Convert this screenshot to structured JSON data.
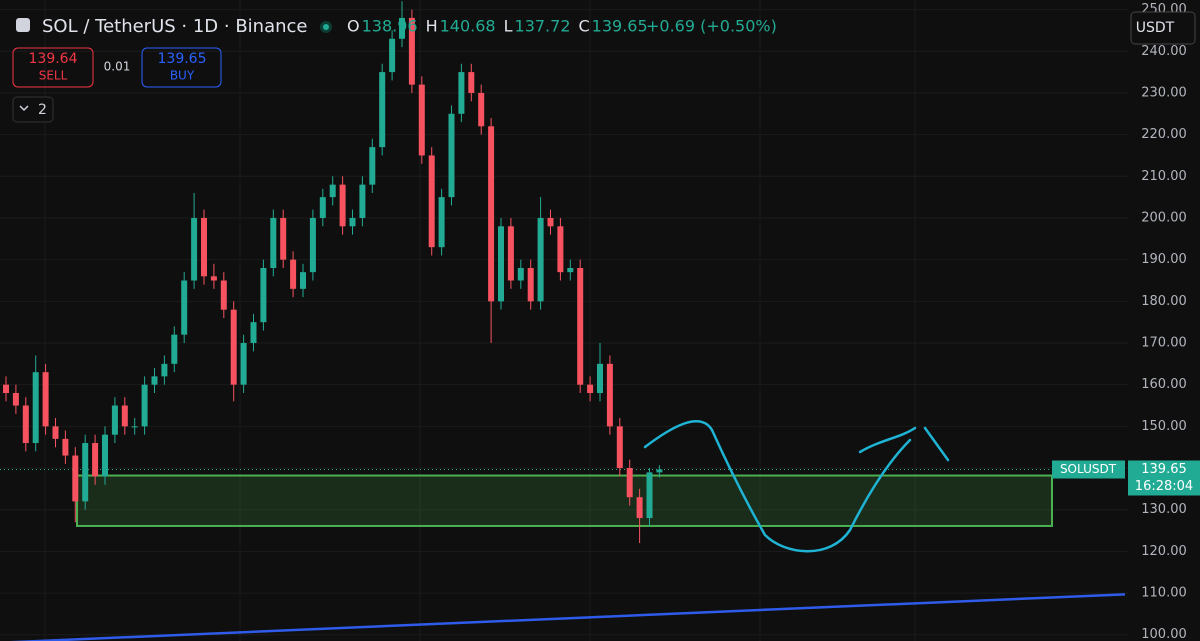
{
  "header": {
    "symbol": "SOL / TetherUS · 1D · Binance",
    "ohlc": [
      {
        "key": "O",
        "value": 138.96
      },
      {
        "key": "H",
        "value": 140.68
      },
      {
        "key": "L",
        "value": 137.72
      },
      {
        "key": "C",
        "value": 139.65
      }
    ],
    "change": "+0.69 (+0.50%)",
    "sell": {
      "price": 139.64,
      "label": "SELL"
    },
    "spread": 0.01,
    "buy": {
      "price": 139.65,
      "label": "BUY"
    },
    "indicators": "2",
    "currency": "USDT"
  },
  "chart_data": {
    "type": "candlestick",
    "up_color": "#22ab94",
    "down_color": "#f7525f",
    "open": [
      160,
      158,
      155,
      146,
      163,
      150,
      147,
      143,
      132,
      146,
      138,
      148,
      155,
      150,
      150,
      160,
      162,
      165,
      172,
      185,
      200,
      186,
      185,
      178,
      160,
      170,
      175,
      188,
      200,
      190,
      183,
      187,
      200,
      205,
      208,
      198,
      200,
      208,
      217,
      235,
      243,
      248,
      232,
      215,
      193,
      205,
      225,
      235,
      230,
      222,
      180,
      198,
      185,
      188,
      180,
      200,
      198,
      187,
      188,
      160,
      158,
      165,
      150,
      140,
      133,
      128,
      138.96
    ],
    "high": [
      162,
      160,
      157,
      167,
      165,
      152,
      149,
      145,
      148,
      148,
      150,
      157,
      157,
      152,
      162,
      164,
      167,
      174,
      187,
      206,
      202,
      189,
      187,
      180,
      172,
      177,
      190,
      202,
      202,
      192,
      189,
      202,
      207,
      210,
      210,
      202,
      210,
      219,
      237,
      245,
      252,
      250,
      234,
      217,
      207,
      227,
      237,
      237,
      232,
      224,
      200,
      200,
      190,
      190,
      205,
      202,
      200,
      190,
      190,
      162,
      170,
      167,
      152,
      142,
      135,
      140,
      140.68
    ],
    "low": [
      156,
      153,
      144,
      144,
      148,
      145,
      141,
      127,
      130,
      136,
      136,
      146,
      148,
      148,
      148,
      158,
      160,
      163,
      170,
      183,
      184,
      183,
      176,
      156,
      158,
      168,
      173,
      186,
      188,
      181,
      181,
      185,
      198,
      203,
      196,
      196,
      198,
      206,
      215,
      233,
      241,
      230,
      213,
      191,
      191,
      203,
      223,
      228,
      220,
      170,
      178,
      183,
      183,
      178,
      178,
      196,
      185,
      185,
      158,
      156,
      156,
      148,
      138,
      131,
      122,
      126,
      137.72
    ],
    "close": [
      158,
      155,
      146,
      163,
      150,
      147,
      143,
      132,
      146,
      138,
      148,
      155,
      150,
      150,
      160,
      162,
      165,
      172,
      185,
      200,
      186,
      185,
      178,
      160,
      170,
      175,
      188,
      200,
      190,
      183,
      187,
      200,
      205,
      208,
      198,
      200,
      208,
      217,
      235,
      243,
      248,
      232,
      215,
      193,
      205,
      225,
      235,
      230,
      222,
      180,
      198,
      185,
      188,
      180,
      200,
      198,
      187,
      188,
      160,
      158,
      165,
      150,
      140,
      133,
      128,
      138.96,
      139.65
    ],
    "ylim": [
      98.5,
      252.3
    ],
    "yticks": [
      {
        "value": 100,
        "label": "100.00"
      },
      {
        "value": 110,
        "label": "110.00"
      },
      {
        "value": 120,
        "label": "120.00"
      },
      {
        "value": 130,
        "label": "130.00"
      },
      {
        "value": 140,
        "label": "140.00"
      },
      {
        "value": 150,
        "label": "150.00"
      },
      {
        "value": 160,
        "label": "160.00"
      },
      {
        "value": 170,
        "label": "170.00"
      },
      {
        "value": 180,
        "label": "180.00"
      },
      {
        "value": 190,
        "label": "190.00"
      },
      {
        "value": 200,
        "label": "200.00"
      },
      {
        "value": 210,
        "label": "210.00"
      },
      {
        "value": 220,
        "label": "220.00"
      },
      {
        "value": 230,
        "label": "230.00"
      },
      {
        "value": 240,
        "label": "240.00"
      },
      {
        "value": 250,
        "label": "250.00"
      }
    ],
    "grid": true,
    "zone": {
      "low": 126.1,
      "high": 138.2,
      "color": "#4caf50"
    },
    "trendline": {
      "start": 98.1,
      "end": 109.7,
      "color": "#2f5bea"
    },
    "last_price": {
      "symbol": "SOLUSDT",
      "price": 139.65,
      "countdown": "16:28:04"
    }
  }
}
